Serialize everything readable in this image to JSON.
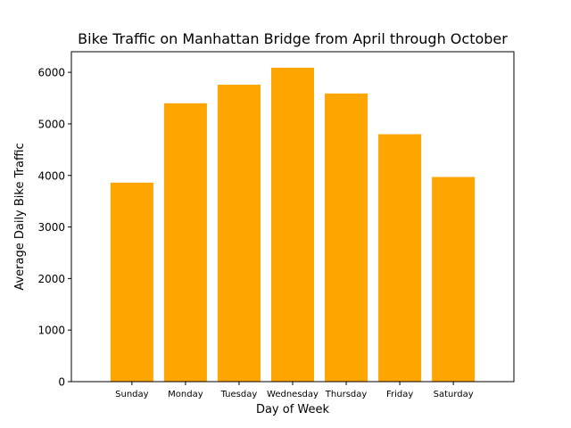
{
  "chart_data": {
    "type": "bar",
    "title": "Bike Traffic on Manhattan Bridge from April through October",
    "xlabel": "Day of Week",
    "ylabel": "Average Daily Bike Traffic",
    "categories": [
      "Sunday",
      "Monday",
      "Tuesday",
      "Wednesday",
      "Thursday",
      "Friday",
      "Saturday"
    ],
    "values": [
      3860,
      5400,
      5760,
      6090,
      5590,
      4800,
      3970
    ],
    "ylim": [
      0,
      6400
    ],
    "yticks": [
      0,
      1000,
      2000,
      3000,
      4000,
      5000,
      6000
    ],
    "ytick_labels": [
      "0",
      "1000",
      "2000",
      "3000",
      "4000",
      "5000",
      "6000"
    ],
    "bar_color": "#ffa500",
    "grid": false,
    "legend": "none"
  }
}
